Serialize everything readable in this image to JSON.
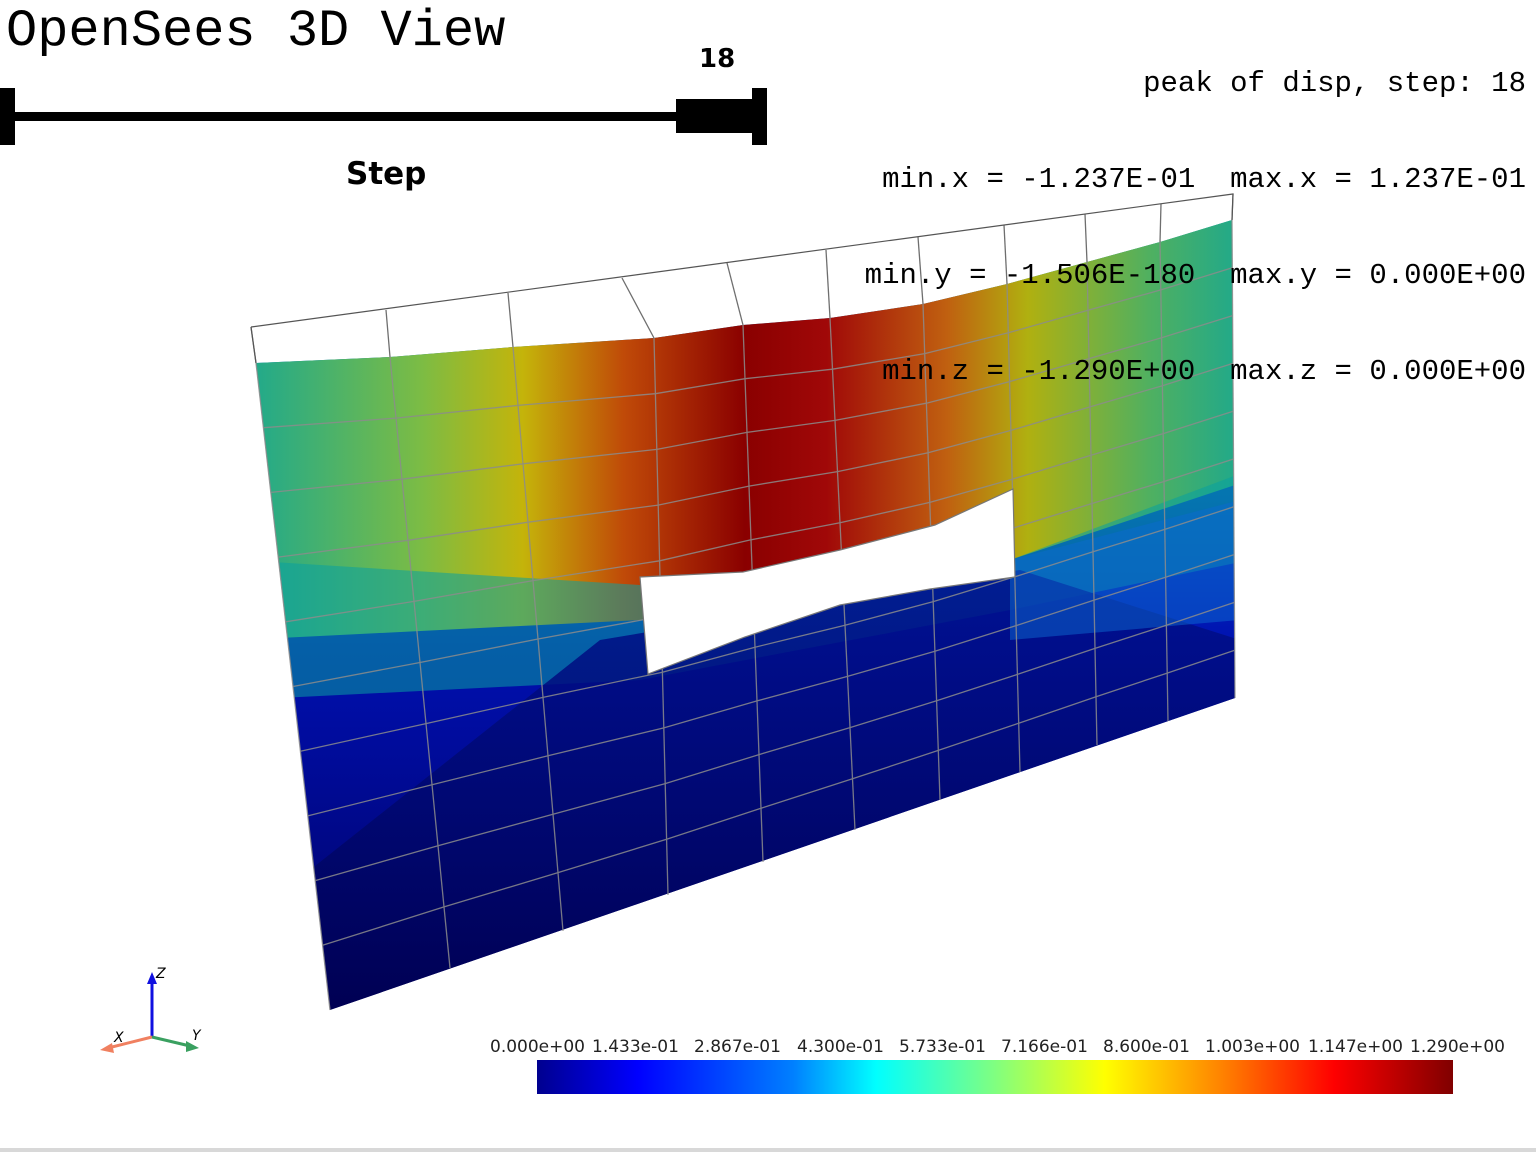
{
  "window": {
    "title": "OpenSees 3D View"
  },
  "info_panel": {
    "header": "peak of disp, step: 18",
    "min_x": "min.x = -1.237E-01",
    "max_x": "max.x = 1.237E-01",
    "min_y": "min.y = -1.506E-180",
    "max_y": "max.y = 0.000E+00",
    "min_z": "min.z = -1.290E+00",
    "max_z": "max.z = 0.000E+00"
  },
  "slider": {
    "title": "Step",
    "value": "18",
    "fraction": 1.0
  },
  "axes_widget": {
    "x_label": "X",
    "y_label": "Y",
    "z_label": "Z",
    "x_color": "#f08060",
    "y_color": "#3aa060",
    "z_color": "#1010e0"
  },
  "colorbar": {
    "colormap": "jet",
    "ticks": [
      "0.000e+00",
      "1.433e-01",
      "2.867e-01",
      "4.300e-01",
      "5.733e-01",
      "7.166e-01",
      "8.600e-01",
      "1.003e+00",
      "1.147e+00",
      "1.290e+00"
    ]
  },
  "mesh": {
    "grid_color": "#888888",
    "undeformed_outline_color": "#444444"
  }
}
